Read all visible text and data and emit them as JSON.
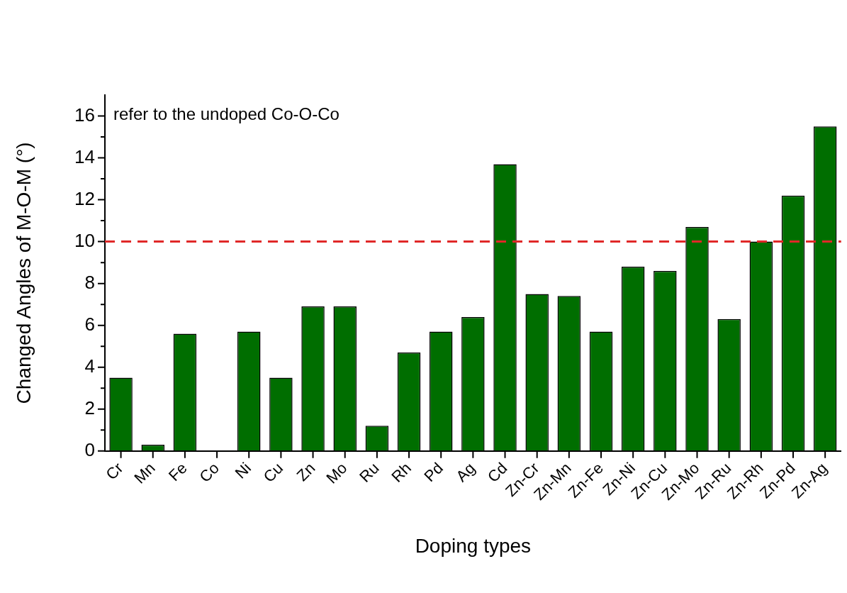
{
  "chart_data": {
    "type": "bar",
    "xlabel": "Doping types",
    "ylabel": "Changed Angles of M-O-M (°)",
    "categories": [
      "Cr",
      "Mn",
      "Fe",
      "Co",
      "Ni",
      "Cu",
      "Zn",
      "Mo",
      "Ru",
      "Rh",
      "Pd",
      "Ag",
      "Cd",
      "Zn-Cr",
      "Zn-Mn",
      "Zn-Fe",
      "Zn-Ni",
      "Zn-Cu",
      "Zn-Mo",
      "Zn-Ru",
      "Zn-Rh",
      "Zn-Pd",
      "Zn-Ag"
    ],
    "values": [
      3.5,
      0.3,
      5.6,
      0,
      5.7,
      3.5,
      6.9,
      6.9,
      1.2,
      4.7,
      5.7,
      6.4,
      13.7,
      7.5,
      7.4,
      5.7,
      8.8,
      8.6,
      10.7,
      6.3,
      10.0,
      12.2,
      15.5
    ],
    "color": "#006e00",
    "ylim": [
      0,
      17
    ],
    "yticks": [
      0,
      {
        "value": 1,
        "label": null
      },
      2,
      {
        "value": 3,
        "label": null
      },
      4,
      {
        "value": 5,
        "label": null
      },
      6,
      {
        "value": 7,
        "label": null
      },
      8,
      {
        "value": 9,
        "label": null
      },
      10,
      {
        "value": 11,
        "label": null
      },
      12,
      {
        "value": 13,
        "label": null
      },
      14,
      {
        "value": 15,
        "label": null
      },
      16
    ],
    "ref_lines": [
      {
        "axis": "y",
        "value": 10,
        "color": "#e02828",
        "line_style": "dashed"
      }
    ],
    "annotations": [
      "refer to the undoped Co-O-Co"
    ]
  }
}
